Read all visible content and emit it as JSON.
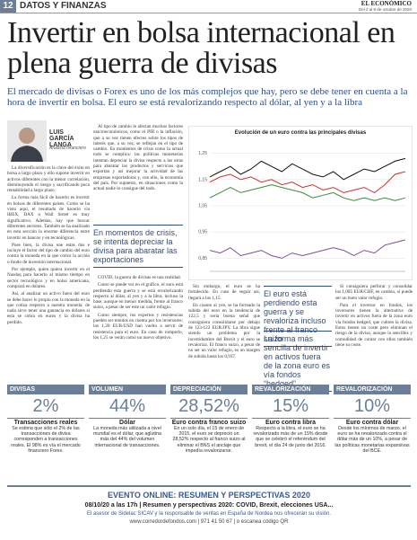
{
  "header": {
    "page": "12",
    "section": "DATOS Y FINANZAS",
    "brand": "EL ECONÓMICO",
    "date": "Del 2 al 8 de octubre de 2020"
  },
  "article": {
    "title": "Invertir en bolsa internacional en plena guerra de divisas",
    "subtitle": "El mercado de divisas o Forex es uno de los más complejos que hay, pero se debe tener en cuenta a la hora de invertir en bolsa. El euro se está revalorizando respecto al dólar, al yen y a la libra",
    "author": "LUIS GARCÍA LANGA",
    "role": "Analista financiero",
    "columns": [
      [
        "La diversificación es la clave del éxito en bolsa a largo plazo y ello supone invertir en activos diferentes con la menor correlación, disminuyendo el riesgo y sacrificando poca rentabilidad a largo plazo.",
        "La forma más fácil de hacerlo es invertir en bolsas de diferentes países. Como se ha visto aquí, el resultado de hacerlo vía IBEX, DAX o Wall Street es muy significativo. Además, hay que buscar diferentes sectores. También se ha analizado en esta sección la enorme diferencia entre invertir en bancos y en tecnológicas.",
        "Pues bien, la divisa une estas dos e incluye el factor del tipo de cambio del euro contra la moneda en la que cotice la acción o fondo de inversión internacional.",
        "Por ejemplo, quien quiera invertir en el Nasdaq para hacerlo al mismo tiempo en sector tecnológico y en bolsa americana, comprará en dólares.",
        "Así, al analizar un activo fuera del euro se debe hacer lo propio con la moneda en la que cotiza respecto a nuestra moneda: de nada sirve tener una ganancia en dólares si esta se cobra en euros y la divisa ha perdido."
      ],
      [
        "Al tipo de cambio le afectan muchos factores macroeconómicos, como el PIB o la inflación, que a su vez tienen efectos sobre los tipos de interés que, a su vez, se reflejan en el tipo de cambio. En momentos de crisis como la actual todo se complica: las políticas monetarias intentan depreciar la divisa respecto a las otras para abaratar los productos y servicios que exportan y así mejorar la actividad de las empresas exportadoras y, con ello, la economía del país. Por supuesto, en situaciones como la actual nadie lo consigue del todo.",
        "COVID, la guerra de divisas es una realidad.",
        "Como se puede ver en el gráfico, el euro está perdiendo esta guerra y se está revalorizando respecto al dólar, al yen y a la libra, incluso la base, aunque en menor medida, frente al franco suizo, a pesar de ser este un valor refugio.",
        "Como siempre, los expertos y resistencias pueden ser tenidos en cuenta por los inversores: los 1,20 EUR/USD han vuelto a servir de resistencia para el euro. En caso de romperlo, los 1,25 se verán como un nuevo objetivo."
      ],
      [
        "Sin embargo, el euro se ha fortalecido. En caso de seguir así, llegará a los 1,15.",
        "En cuanto al yen, se ha formado la subida del euro en la tendencia de 122,5 y seria buena señal que consiguiera consolidarse por debajo de 123-122 EUR/JPY. La libra sigue siendo un problema por la incertidumbre del Brexit y el euro se revaloriza. El franco suizo, a pesar de no ser un valor refugio, es un margen de subida hasta los 0,937."
      ],
      [
        "Si consiguiera perforar y consolidar los 1,085 EUR/CHF, en cambio, sí puede ser un buen valor refugio.",
        "Para el inversor en fondos, los inversores tienen la alternativa de invertir en activos fuera de la zona euro vía fondos hedged, que cubren la divisa. Estos tienen un coste pero eliminan el riesgo de la divisa, aunque la sencillez y comodidad de contar con ellos también tiene su coste."
      ]
    ],
    "quotes": [
      "En momentos de crisis, se intenta depreciar la divisa para abaratar las exportaciones",
      "El euro está perdiendo esta guerra y se revaloriza incluso frente al franco suizo",
      "La forma más sencilla de invertir en activos fuera de la zona euro es vía fondos “hedged”"
    ]
  },
  "chart_data": {
    "type": "line",
    "title": "Evolución de un euro contra las principales divisas",
    "ylim": [
      0.8,
      1.3
    ],
    "yticks": [
      {
        "value": 0.85,
        "label": "0,85"
      },
      {
        "value": 0.95,
        "label": "0,95"
      },
      {
        "value": 1.05,
        "label": "1,05"
      },
      {
        "value": 1.15,
        "label": "1,15"
      },
      {
        "value": 1.25,
        "label": "1,25"
      }
    ],
    "grid": true,
    "series": [
      {
        "color": "#111111",
        "values": [
          1.16,
          1.18,
          1.2,
          1.17,
          1.19,
          1.22,
          1.2,
          1.18,
          1.21,
          1.19,
          1.17,
          1.16,
          1.18,
          1.15,
          1.17,
          1.19,
          1.18,
          1.2,
          1.22,
          1.23
        ]
      },
      {
        "color": "#d0302a",
        "values": [
          1.14,
          1.16,
          1.17,
          1.15,
          1.16,
          1.14,
          1.15,
          1.13,
          1.14,
          1.12,
          1.13,
          1.11,
          1.12,
          1.1,
          1.11,
          1.12,
          1.1,
          1.13,
          1.17,
          1.18
        ]
      },
      {
        "color": "#3a8a3a",
        "values": [
          1.08,
          1.1,
          1.12,
          1.1,
          1.11,
          1.12,
          1.13,
          1.12,
          1.11,
          1.1,
          1.08,
          1.09,
          1.1,
          1.08,
          1.07,
          1.08,
          1.07,
          1.08,
          1.07,
          1.08
        ]
      },
      {
        "color": "#7a4fa0",
        "values": [
          0.88,
          0.87,
          0.89,
          0.86,
          0.87,
          0.88,
          0.86,
          0.85,
          0.87,
          0.86,
          0.87,
          0.88,
          0.89,
          0.88,
          0.86,
          0.88,
          0.87,
          0.9,
          0.91,
          0.92
        ]
      }
    ]
  },
  "stats": [
    {
      "label": "DIVISAS",
      "value": "2%",
      "title": "Transacciones reales",
      "text": "Se estima que sólo el 2% de las transacciones de divisa corresponden a transacciones reales. El 98% es vía el mercado financiero Forex."
    },
    {
      "label": "VOLUMEN",
      "value": "44%",
      "title": "Dólar",
      "text": "La moneda más utilizada a nivel mundial es el dólar, que aglutina más del 44% del volumen internacional de transacciones."
    },
    {
      "label": "DEPRECIACIÓN",
      "value": "28,52%",
      "title": "Euro contra franco suizo",
      "text": "En un solo día, el 15 de enero de 2015, el euro se depreció un 28,52% respecto al franco suizo al eliminar el BNS el anclaje que impedía revalorizarse."
    },
    {
      "label": "REVALORIZACIÓN",
      "value": "15%",
      "title": "Euro contra libra",
      "text": "Respecto a la libra, el euro se ha revalorizado más de un 15% desde que se celebró el referéndum del brexit, el día 24 de junio del 2016."
    },
    {
      "label": "REVALORIZACIÓN",
      "value": "10%",
      "title": "Euro contra dólar",
      "text": "Desde los mínimos de marzo, el euro se ha revalorizado contra el dólar más de un 10%, a pesar de las políticas monetarias expansivas del BCE."
    }
  ],
  "ad": {
    "title": "EVENTO ONLINE: RESUMEN Y PERSPECTIVAS 2020",
    "line1": "08/10/20 a las 17h | Resumen y perspectivas 2020: COVID, Brexit, elecciones USA...",
    "line2": "El asesor de Sidelac SICAV y la responsable de ventas en España de Nordea nos ofrecerán su visión.",
    "line3": "www.corredordefondos.com | 971 41 50 67 | o escanea código QR"
  }
}
